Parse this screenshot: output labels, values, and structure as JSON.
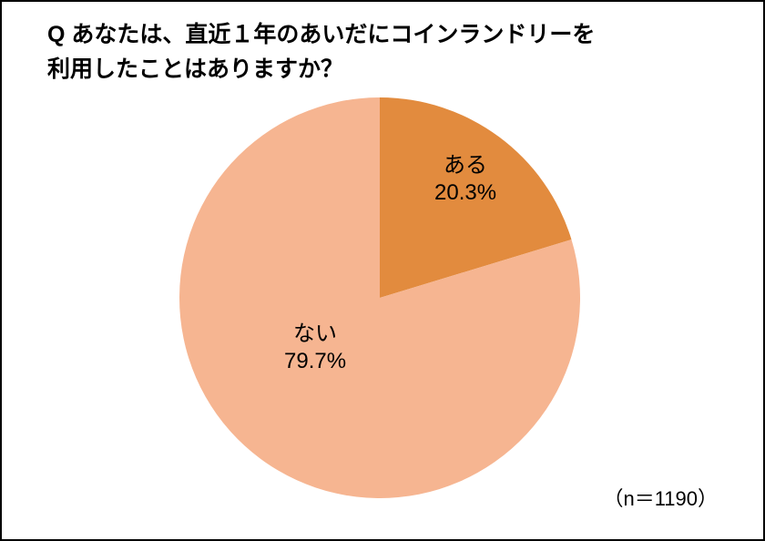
{
  "question": {
    "line1": "Q あなたは、直近１年のあいだにコインランドリーを",
    "line2": "利用したことはありますか？",
    "fontsize": 25
  },
  "chart": {
    "type": "pie",
    "radius": 220,
    "slices": [
      {
        "label": "ある",
        "percent_text": "20.3%",
        "value": 20.3,
        "color": "#e28b3e"
      },
      {
        "label": "ない",
        "percent_text": "79.7%",
        "value": 79.7,
        "color": "#f6b591"
      }
    ],
    "start_angle_deg": 0,
    "label_fontsize": 24,
    "label_color": "#000000",
    "background_color": "#ffffff",
    "border_color": "#000000"
  },
  "footnote": {
    "text": "（n＝1190）",
    "fontsize": 22
  }
}
